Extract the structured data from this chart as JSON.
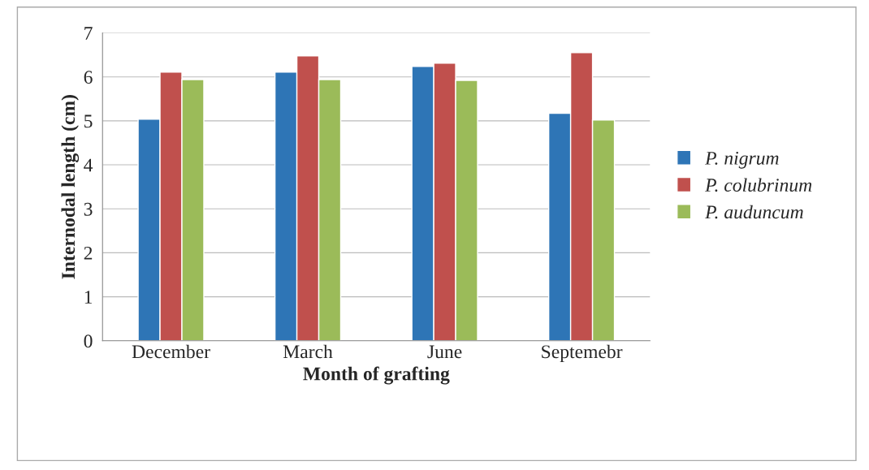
{
  "chart_data": {
    "type": "bar",
    "xlabel": "Month of grafting",
    "ylabel": "Internodal length (cm)",
    "categories": [
      "December",
      "March",
      "June",
      "Septemebr"
    ],
    "series": [
      {
        "name": "P. nigrum",
        "color": "#2e75b6",
        "values": [
          5.04,
          6.11,
          6.24,
          5.17
        ]
      },
      {
        "name": "P. colubrinum",
        "color": "#c0504d",
        "values": [
          6.11,
          6.48,
          6.31,
          6.55
        ]
      },
      {
        "name": "P. auduncum",
        "color": "#9bbb59",
        "values": [
          5.94,
          5.94,
          5.92,
          5.02
        ]
      }
    ],
    "ylim": [
      0,
      7
    ],
    "yticks": [
      0,
      1,
      2,
      3,
      4,
      5,
      6,
      7
    ],
    "grid": "y",
    "legend": "right"
  }
}
